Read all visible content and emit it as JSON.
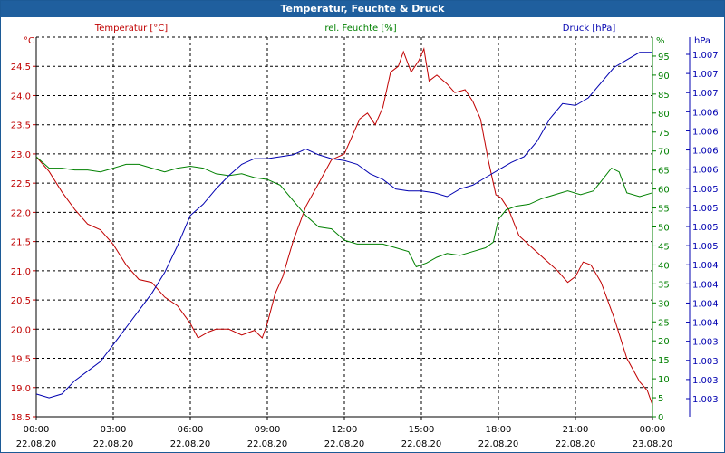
{
  "window": {
    "title": "Temperatur, Feuchte & Druck"
  },
  "chart_data": {
    "type": "line",
    "title": "Temperatur, Feuchte & Druck",
    "series_labels": {
      "temperature": "Temperatur [°C]",
      "humidity": "rel. Feuchte [%]",
      "pressure": "Druck [hPa]"
    },
    "colors": {
      "temperature": "#c00000",
      "humidity": "#008000",
      "pressure": "#0000b0",
      "grid": "#000000",
      "axis": "#000000"
    },
    "x_axis": {
      "range_hours": [
        0,
        24
      ],
      "ticks": [
        {
          "time": "00:00",
          "date": "22.08.20"
        },
        {
          "time": "03:00",
          "date": "22.08.20"
        },
        {
          "time": "06:00",
          "date": "22.08.20"
        },
        {
          "time": "09:00",
          "date": "22.08.20"
        },
        {
          "time": "12:00",
          "date": "22.08.20"
        },
        {
          "time": "15:00",
          "date": "22.08.20"
        },
        {
          "time": "18:00",
          "date": "22.08.20"
        },
        {
          "time": "21:00",
          "date": "22.08.20"
        },
        {
          "time": "00:00",
          "date": "23.08.20"
        }
      ]
    },
    "y_left": {
      "unit": "°C",
      "ylim": [
        18.5,
        25.0
      ],
      "ticks": [
        "18.5",
        "19.0",
        "19.5",
        "20.0",
        "20.5",
        "21.0",
        "21.5",
        "22.0",
        "22.5",
        "23.0",
        "23.5",
        "24.0",
        "24.5"
      ]
    },
    "y_right1": {
      "unit": "%",
      "ylim": [
        0,
        100
      ],
      "ticks": [
        "0",
        "5",
        "10",
        "15",
        "20",
        "25",
        "30",
        "35",
        "40",
        "45",
        "50",
        "55",
        "60",
        "65",
        "70",
        "75",
        "80",
        "85",
        "90",
        "95"
      ]
    },
    "y_right2": {
      "unit": "hPa",
      "ticks": [
        "1.003",
        "1.003",
        "1.003",
        "1.003",
        "1.004",
        "1.004",
        "1.004",
        "1.004",
        "1.005",
        "1.005",
        "1.005",
        "1.005",
        "1.006",
        "1.006",
        "1.006",
        "1.006",
        "1.007",
        "1.007",
        "1.007"
      ]
    },
    "series": [
      {
        "name": "temperature",
        "axis": "left",
        "values": [
          [
            0,
            22.95
          ],
          [
            0.5,
            22.7
          ],
          [
            1,
            22.35
          ],
          [
            1.5,
            22.05
          ],
          [
            2,
            21.8
          ],
          [
            2.5,
            21.7
          ],
          [
            3,
            21.45
          ],
          [
            3.5,
            21.1
          ],
          [
            4,
            20.85
          ],
          [
            4.5,
            20.8
          ],
          [
            5,
            20.55
          ],
          [
            5.5,
            20.4
          ],
          [
            6,
            20.1
          ],
          [
            6.3,
            19.85
          ],
          [
            6.7,
            19.95
          ],
          [
            7,
            20.0
          ],
          [
            7.5,
            20.0
          ],
          [
            8,
            19.9
          ],
          [
            8.5,
            19.98
          ],
          [
            8.8,
            19.85
          ],
          [
            9,
            20.1
          ],
          [
            9.3,
            20.6
          ],
          [
            9.6,
            20.9
          ],
          [
            10,
            21.5
          ],
          [
            10.5,
            22.1
          ],
          [
            11,
            22.5
          ],
          [
            11.5,
            22.9
          ],
          [
            12,
            23.0
          ],
          [
            12.3,
            23.3
          ],
          [
            12.6,
            23.6
          ],
          [
            12.9,
            23.7
          ],
          [
            13.2,
            23.5
          ],
          [
            13.5,
            23.8
          ],
          [
            13.8,
            24.4
          ],
          [
            14.1,
            24.5
          ],
          [
            14.3,
            24.75
          ],
          [
            14.6,
            24.4
          ],
          [
            14.9,
            24.6
          ],
          [
            15.1,
            24.8
          ],
          [
            15.3,
            24.25
          ],
          [
            15.6,
            24.35
          ],
          [
            16,
            24.2
          ],
          [
            16.3,
            24.05
          ],
          [
            16.7,
            24.1
          ],
          [
            17,
            23.9
          ],
          [
            17.3,
            23.6
          ],
          [
            17.6,
            22.9
          ],
          [
            17.9,
            22.3
          ],
          [
            18.1,
            22.25
          ],
          [
            18.4,
            22.05
          ],
          [
            18.8,
            21.6
          ],
          [
            19.3,
            21.4
          ],
          [
            19.8,
            21.2
          ],
          [
            20.3,
            21.0
          ],
          [
            20.7,
            20.8
          ],
          [
            21.0,
            20.9
          ],
          [
            21.3,
            21.15
          ],
          [
            21.6,
            21.1
          ],
          [
            22.0,
            20.8
          ],
          [
            22.5,
            20.2
          ],
          [
            23.0,
            19.5
          ],
          [
            23.5,
            19.1
          ],
          [
            23.8,
            18.95
          ],
          [
            24,
            18.7
          ]
        ]
      },
      {
        "name": "humidity",
        "axis": "right1",
        "values": [
          [
            0,
            68.5
          ],
          [
            0.5,
            65.5
          ],
          [
            1,
            65.5
          ],
          [
            1.5,
            65.0
          ],
          [
            2,
            65.0
          ],
          [
            2.5,
            64.5
          ],
          [
            3,
            65.5
          ],
          [
            3.5,
            66.5
          ],
          [
            4,
            66.5
          ],
          [
            4.5,
            65.5
          ],
          [
            5,
            64.5
          ],
          [
            5.5,
            65.5
          ],
          [
            6,
            66.0
          ],
          [
            6.5,
            65.5
          ],
          [
            7,
            64.0
          ],
          [
            7.5,
            63.5
          ],
          [
            8,
            64.0
          ],
          [
            8.5,
            63.0
          ],
          [
            9,
            62.5
          ],
          [
            9.5,
            61.0
          ],
          [
            10,
            57.0
          ],
          [
            10.5,
            53.0
          ],
          [
            11,
            50.0
          ],
          [
            11.5,
            49.5
          ],
          [
            12,
            46.5
          ],
          [
            12.5,
            45.5
          ],
          [
            13,
            45.5
          ],
          [
            13.5,
            45.5
          ],
          [
            14,
            44.5
          ],
          [
            14.5,
            43.5
          ],
          [
            14.8,
            39.5
          ],
          [
            15.2,
            40.5
          ],
          [
            15.6,
            42.0
          ],
          [
            16,
            43.0
          ],
          [
            16.5,
            42.5
          ],
          [
            17,
            43.5
          ],
          [
            17.5,
            44.5
          ],
          [
            17.8,
            46.0
          ],
          [
            18.0,
            52.0
          ],
          [
            18.3,
            54.5
          ],
          [
            18.7,
            55.5
          ],
          [
            19.2,
            56.0
          ],
          [
            19.7,
            57.5
          ],
          [
            20.2,
            58.5
          ],
          [
            20.7,
            59.5
          ],
          [
            21.2,
            58.5
          ],
          [
            21.7,
            59.5
          ],
          [
            22.0,
            62.0
          ],
          [
            22.4,
            65.5
          ],
          [
            22.7,
            64.5
          ],
          [
            23.0,
            59.0
          ],
          [
            23.5,
            58.0
          ],
          [
            24,
            59.0
          ]
        ]
      },
      {
        "name": "pressure",
        "axis": "right1",
        "values": [
          [
            0,
            6.0
          ],
          [
            0.5,
            5.0
          ],
          [
            1,
            6.0
          ],
          [
            1.5,
            9.5
          ],
          [
            2,
            12.0
          ],
          [
            2.5,
            14.5
          ],
          [
            3,
            19.0
          ],
          [
            3.5,
            23.5
          ],
          [
            4,
            28.0
          ],
          [
            4.5,
            32.5
          ],
          [
            5,
            38.0
          ],
          [
            5.5,
            45.0
          ],
          [
            6,
            53.0
          ],
          [
            6.5,
            56.0
          ],
          [
            7,
            60.0
          ],
          [
            7.5,
            63.5
          ],
          [
            8,
            66.5
          ],
          [
            8.5,
            68.0
          ],
          [
            9,
            68.0
          ],
          [
            9.5,
            68.5
          ],
          [
            10,
            69.0
          ],
          [
            10.5,
            70.5
          ],
          [
            11,
            69.0
          ],
          [
            11.5,
            68.0
          ],
          [
            12,
            67.5
          ],
          [
            12.5,
            66.5
          ],
          [
            13,
            64.0
          ],
          [
            13.5,
            62.5
          ],
          [
            14,
            60.0
          ],
          [
            14.5,
            59.5
          ],
          [
            15,
            59.5
          ],
          [
            15.5,
            59.0
          ],
          [
            16,
            58.0
          ],
          [
            16.5,
            60.0
          ],
          [
            17,
            61.0
          ],
          [
            17.5,
            63.0
          ],
          [
            18,
            65.0
          ],
          [
            18.5,
            67.0
          ],
          [
            19,
            68.5
          ],
          [
            19.5,
            72.5
          ],
          [
            20,
            78.5
          ],
          [
            20.5,
            82.5
          ],
          [
            21,
            82.0
          ],
          [
            21.5,
            84.0
          ],
          [
            22,
            88.0
          ],
          [
            22.5,
            92.0
          ],
          [
            23,
            94.0
          ],
          [
            23.5,
            96.0
          ],
          [
            24,
            96.0
          ]
        ]
      }
    ]
  }
}
